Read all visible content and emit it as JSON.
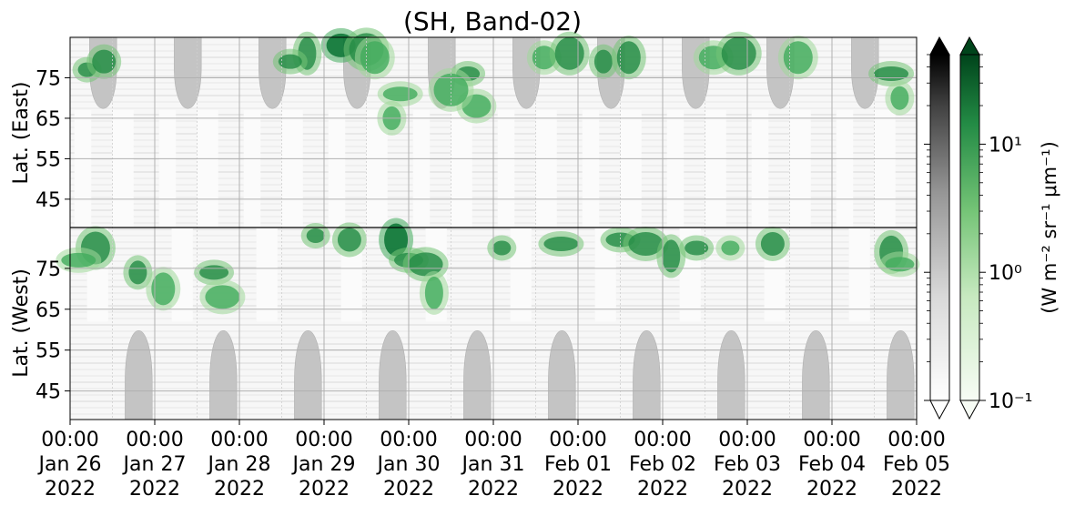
{
  "chart_data": {
    "type": "heatmap",
    "title": "(SH, Band-02)",
    "ylabel_top": "Lat. (East)",
    "ylabel_bottom": "Lat. (West)",
    "colorbar_label": "(W m⁻² sr⁻¹ μm⁻¹)",
    "colorbar_scale": "log",
    "colorbar_range": [
      0.1,
      50
    ],
    "colorbar_ticks": [
      "10⁻¹",
      "10⁰",
      "10¹"
    ],
    "colormaps": [
      "Greys",
      "Greens"
    ],
    "grid": true,
    "x_range": [
      "2022-01-26 00:00",
      "2022-02-05 00:00"
    ],
    "x_ticks": [
      [
        "00:00",
        "Jan 26",
        "2022"
      ],
      [
        "00:00",
        "Jan 27",
        "2022"
      ],
      [
        "00:00",
        "Jan 28",
        "2022"
      ],
      [
        "00:00",
        "Jan 29",
        "2022"
      ],
      [
        "00:00",
        "Jan 30",
        "2022"
      ],
      [
        "00:00",
        "Jan 31",
        "2022"
      ],
      [
        "00:00",
        "Feb 01",
        "2022"
      ],
      [
        "00:00",
        "Feb 02",
        "2022"
      ],
      [
        "00:00",
        "Feb 03",
        "2022"
      ],
      [
        "00:00",
        "Feb 04",
        "2022"
      ],
      [
        "00:00",
        "Feb 05",
        "2022"
      ]
    ],
    "y_ticks_top": [
      "45",
      "55",
      "65",
      "75"
    ],
    "y_ticks_bottom": [
      "75",
      "65",
      "55",
      "45"
    ],
    "lat_range_east": [
      38,
      85
    ],
    "lat_range_west": [
      38,
      85
    ],
    "gray_regions_east": [
      {
        "start": 0.23,
        "end": 0.55,
        "max_lat": 64
      },
      {
        "start": 1.23,
        "end": 1.55,
        "max_lat": 64
      },
      {
        "start": 2.23,
        "end": 2.55,
        "max_lat": 64
      },
      {
        "start": 3.23,
        "end": 3.55,
        "max_lat": 64
      },
      {
        "start": 4.23,
        "end": 4.55,
        "max_lat": 64
      },
      {
        "start": 5.23,
        "end": 5.55,
        "max_lat": 64
      },
      {
        "start": 6.23,
        "end": 6.55,
        "max_lat": 64
      },
      {
        "start": 7.23,
        "end": 7.55,
        "max_lat": 64
      },
      {
        "start": 8.23,
        "end": 8.55,
        "max_lat": 64
      },
      {
        "start": 9.23,
        "end": 9.55,
        "max_lat": 64
      }
    ],
    "gray_regions_west": [
      {
        "start": 0.65,
        "end": 0.97,
        "max_lat": 64
      },
      {
        "start": 1.65,
        "end": 1.97,
        "max_lat": 64
      },
      {
        "start": 2.65,
        "end": 2.97,
        "max_lat": 64
      },
      {
        "start": 3.65,
        "end": 3.97,
        "max_lat": 64
      },
      {
        "start": 4.65,
        "end": 4.97,
        "max_lat": 64
      },
      {
        "start": 5.65,
        "end": 5.97,
        "max_lat": 64
      },
      {
        "start": 6.65,
        "end": 6.97,
        "max_lat": 64
      },
      {
        "start": 7.65,
        "end": 7.97,
        "max_lat": 64
      },
      {
        "start": 8.65,
        "end": 8.97,
        "max_lat": 64
      },
      {
        "start": 9.65,
        "end": 9.97,
        "max_lat": 64
      }
    ],
    "green_patches": [
      {
        "side": "east",
        "day": 0.2,
        "lat": 77,
        "intensity": 2.5
      },
      {
        "side": "east",
        "day": 0.4,
        "lat": 79,
        "intensity": 3.0
      },
      {
        "side": "west",
        "day": 0.3,
        "lat": 80,
        "intensity": 2.0
      },
      {
        "side": "west",
        "day": 0.1,
        "lat": 77,
        "intensity": 1.2
      },
      {
        "side": "west",
        "day": 0.8,
        "lat": 74,
        "intensity": 2.5
      },
      {
        "side": "west",
        "day": 1.1,
        "lat": 70,
        "intensity": 1.5
      },
      {
        "side": "west",
        "day": 1.7,
        "lat": 74,
        "intensity": 2.0
      },
      {
        "side": "west",
        "day": 1.8,
        "lat": 68,
        "intensity": 1.5
      },
      {
        "side": "east",
        "day": 2.8,
        "lat": 81,
        "intensity": 2.0
      },
      {
        "side": "east",
        "day": 2.6,
        "lat": 79,
        "intensity": 2.5
      },
      {
        "side": "east",
        "day": 3.2,
        "lat": 83,
        "intensity": 4.0
      },
      {
        "side": "east",
        "day": 3.5,
        "lat": 82,
        "intensity": 3.5
      },
      {
        "side": "west",
        "day": 2.9,
        "lat": 83,
        "intensity": 2.5
      },
      {
        "side": "west",
        "day": 3.3,
        "lat": 82,
        "intensity": 2.0
      },
      {
        "side": "east",
        "day": 3.6,
        "lat": 80,
        "intensity": 1.5
      },
      {
        "side": "east",
        "day": 3.9,
        "lat": 71,
        "intensity": 1.5
      },
      {
        "side": "east",
        "day": 3.8,
        "lat": 65,
        "intensity": 1.0
      },
      {
        "side": "west",
        "day": 3.85,
        "lat": 82,
        "intensity": 6.0
      },
      {
        "side": "west",
        "day": 4.0,
        "lat": 77,
        "intensity": 3.0
      },
      {
        "side": "west",
        "day": 4.2,
        "lat": 76,
        "intensity": 2.0
      },
      {
        "side": "west",
        "day": 4.3,
        "lat": 69,
        "intensity": 1.2
      },
      {
        "side": "east",
        "day": 4.7,
        "lat": 76,
        "intensity": 3.5
      },
      {
        "side": "east",
        "day": 4.8,
        "lat": 68,
        "intensity": 1.8
      },
      {
        "side": "east",
        "day": 4.5,
        "lat": 72,
        "intensity": 1.5
      },
      {
        "side": "west",
        "day": 5.1,
        "lat": 80,
        "intensity": 2.5
      },
      {
        "side": "east",
        "day": 5.6,
        "lat": 80,
        "intensity": 1.8
      },
      {
        "side": "east",
        "day": 5.9,
        "lat": 81,
        "intensity": 2.5
      },
      {
        "side": "west",
        "day": 5.8,
        "lat": 81,
        "intensity": 2.0
      },
      {
        "side": "east",
        "day": 6.3,
        "lat": 79,
        "intensity": 2.0
      },
      {
        "side": "east",
        "day": 6.6,
        "lat": 80,
        "intensity": 2.5
      },
      {
        "side": "west",
        "day": 6.5,
        "lat": 82,
        "intensity": 2.0
      },
      {
        "side": "west",
        "day": 6.8,
        "lat": 81,
        "intensity": 3.0
      },
      {
        "side": "west",
        "day": 7.1,
        "lat": 78,
        "intensity": 2.5
      },
      {
        "side": "west",
        "day": 7.4,
        "lat": 80,
        "intensity": 2.0
      },
      {
        "side": "east",
        "day": 7.6,
        "lat": 80,
        "intensity": 1.5
      },
      {
        "side": "east",
        "day": 7.9,
        "lat": 81,
        "intensity": 2.5
      },
      {
        "side": "west",
        "day": 7.8,
        "lat": 80,
        "intensity": 1.5
      },
      {
        "side": "west",
        "day": 8.3,
        "lat": 81,
        "intensity": 2.0
      },
      {
        "side": "east",
        "day": 8.6,
        "lat": 80,
        "intensity": 1.8
      },
      {
        "side": "east",
        "day": 9.7,
        "lat": 76,
        "intensity": 2.5
      },
      {
        "side": "east",
        "day": 9.8,
        "lat": 70,
        "intensity": 1.5
      },
      {
        "side": "west",
        "day": 9.7,
        "lat": 79,
        "intensity": 2.0
      },
      {
        "side": "west",
        "day": 9.8,
        "lat": 76,
        "intensity": 1.5
      }
    ]
  }
}
